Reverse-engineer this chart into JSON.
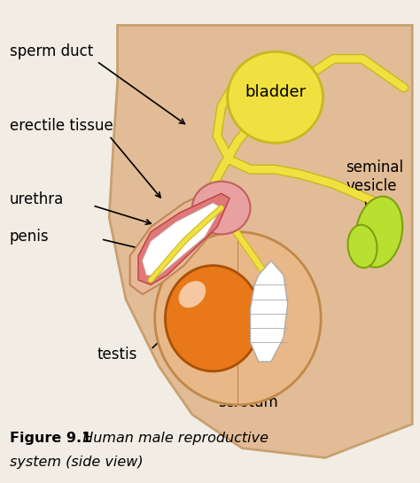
{
  "background_color": "#f2ede4",
  "body_color": "#e2bc96",
  "body_stroke": "#c8a070",
  "bladder_color": "#f0e040",
  "bladder_stroke": "#c8b820",
  "duct_color": "#f0e040",
  "duct_stroke": "#c8b820",
  "erectile_color": "#e07878",
  "erectile_stroke": "#b84040",
  "penis_color": "#e8b898",
  "penis_stroke": "#c08858",
  "testis_color": "#e87818",
  "testis_stroke": "#a85008",
  "scrotum_color": "#e8b888",
  "scrotum_stroke": "#c08848",
  "seminal_color": "#b8e030",
  "seminal_stroke": "#80a010",
  "white_color": "#ffffff",
  "prostate_color": "#e8a0a0",
  "prostate_stroke": "#c06060",
  "title_bold": "Figure 9.1",
  "title_italic": "  Human male reproductive",
  "title_italic2": "system (side view)"
}
